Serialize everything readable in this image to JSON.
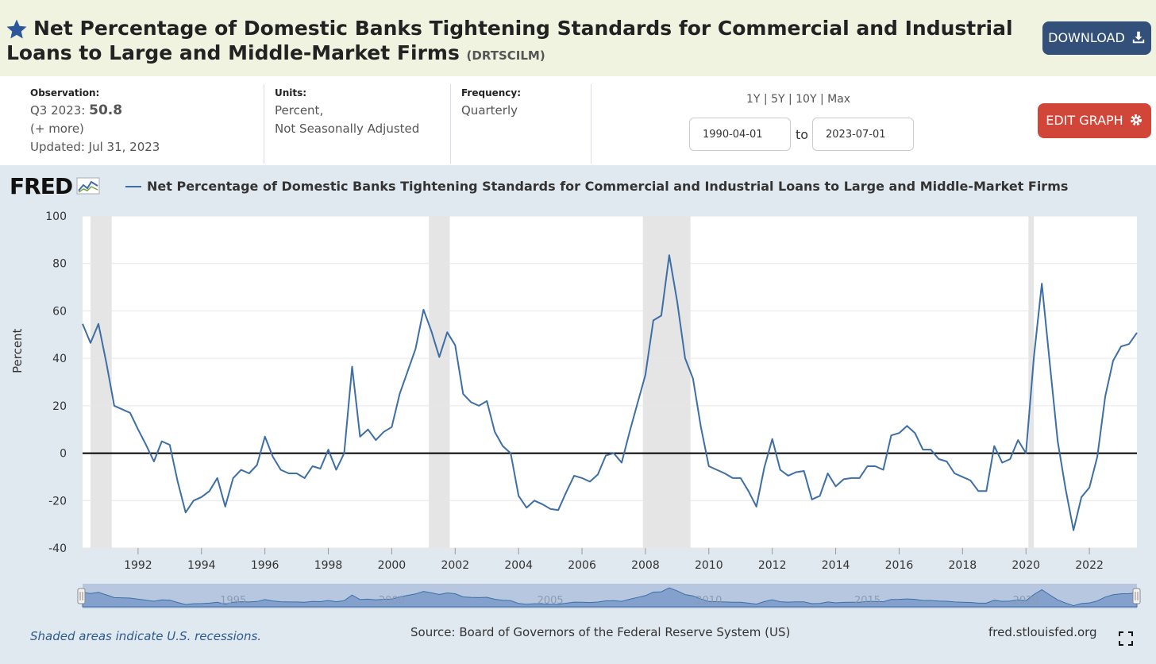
{
  "header": {
    "title": "Net Percentage of Domestic Banks Tightening Standards for Commercial and Industrial Loans to Large and Middle-Market Firms",
    "series_code": "(DRTSCILM)",
    "download_label": "DOWNLOAD"
  },
  "meta": {
    "observation_label": "Observation:",
    "observation_period": "Q3 2023:",
    "observation_value": "50.8",
    "more_label": "(+ more)",
    "updated": "Updated: Jul 31, 2023",
    "units_label": "Units:",
    "units_line1": "Percent,",
    "units_line2": "Not Seasonally Adjusted",
    "frequency_label": "Frequency:",
    "frequency_value": "Quarterly",
    "range_options": "1Y | 5Y | 10Y | Max",
    "start_date": "1990-04-01",
    "to_label": "to",
    "end_date": "2023-07-01",
    "edit_label": "EDIT GRAPH"
  },
  "logo_text": "FRED",
  "footer": {
    "recession_note": "Shaded areas indicate U.S. recessions.",
    "source": "Source: Board of Governors of the Federal Reserve System (US)",
    "site": "fred.stlouisfed.org"
  },
  "colors": {
    "series": "#3d6ea5",
    "download_button": "#32507a",
    "edit_button": "#d2463a",
    "header_bg": "#f1f3e1",
    "recession_shade": "#e5e5e5"
  },
  "chart_data": {
    "type": "line",
    "title": "",
    "xlabel": "",
    "ylabel": "Percent",
    "ylim": [
      -40,
      100
    ],
    "xlim": [
      1990.25,
      2023.5
    ],
    "yticks": [
      -40,
      -20,
      0,
      20,
      40,
      60,
      80,
      100
    ],
    "xticks": [
      1992,
      1994,
      1996,
      1998,
      2000,
      2002,
      2004,
      2006,
      2008,
      2010,
      2012,
      2014,
      2016,
      2018,
      2020,
      2022
    ],
    "navigator_labels": [
      "1995",
      "2000",
      "2005",
      "2010",
      "2015",
      "2020"
    ],
    "grid": true,
    "recessions": [
      [
        1990.5,
        1991.17
      ],
      [
        2001.17,
        2001.83
      ],
      [
        2007.92,
        2009.42
      ],
      [
        2020.08,
        2020.25
      ]
    ],
    "series": [
      {
        "name": "Net Percentage of Domestic Banks Tightening Standards for Commercial and Industrial Loans to Large and Middle-Market Firms",
        "x": [
          1990.25,
          1990.5,
          1990.75,
          1991.0,
          1991.25,
          1991.75,
          1992.0,
          1992.25,
          1992.5,
          1992.75,
          1993.0,
          1993.25,
          1993.5,
          1993.75,
          1994.0,
          1994.25,
          1994.5,
          1994.75,
          1995.0,
          1995.25,
          1995.5,
          1995.75,
          1996.0,
          1996.25,
          1996.5,
          1996.75,
          1997.0,
          1997.25,
          1997.5,
          1997.75,
          1998.0,
          1998.25,
          1998.5,
          1998.75,
          1999.0,
          1999.25,
          1999.5,
          1999.75,
          2000.0,
          2000.25,
          2000.5,
          2000.75,
          2001.0,
          2001.25,
          2001.5,
          2001.75,
          2002.0,
          2002.25,
          2002.5,
          2002.75,
          2003.0,
          2003.25,
          2003.5,
          2003.75,
          2004.0,
          2004.25,
          2004.5,
          2004.75,
          2005.0,
          2005.25,
          2005.5,
          2005.75,
          2006.0,
          2006.25,
          2006.5,
          2006.75,
          2007.0,
          2007.25,
          2007.5,
          2007.75,
          2008.0,
          2008.25,
          2008.5,
          2008.75,
          2009.0,
          2009.25,
          2009.5,
          2009.75,
          2010.0,
          2010.25,
          2010.5,
          2010.75,
          2011.0,
          2011.25,
          2011.5,
          2011.75,
          2012.0,
          2012.25,
          2012.5,
          2012.75,
          2013.0,
          2013.25,
          2013.5,
          2013.75,
          2014.0,
          2014.25,
          2014.5,
          2014.75,
          2015.0,
          2015.25,
          2015.5,
          2015.75,
          2016.0,
          2016.25,
          2016.5,
          2016.75,
          2017.0,
          2017.25,
          2017.5,
          2017.75,
          2018.0,
          2018.25,
          2018.5,
          2018.75,
          2019.0,
          2019.25,
          2019.5,
          2019.75,
          2020.0,
          2020.25,
          2020.5,
          2020.75,
          2021.0,
          2021.25,
          2021.5,
          2021.75,
          2022.0,
          2022.25,
          2022.5,
          2022.75,
          2023.0,
          2023.25,
          2023.5
        ],
        "values": [
          54.5,
          46.5,
          54.5,
          38,
          20,
          17,
          10,
          3.5,
          -3.5,
          5,
          3.5,
          -12,
          -25,
          -20,
          -18.5,
          -16,
          -10.5,
          -22.5,
          -10.5,
          -7,
          -8.5,
          -5,
          7,
          -1.5,
          -7,
          -8.5,
          -8.5,
          -10.5,
          -5.5,
          -6.5,
          1.5,
          -7,
          0,
          36.5,
          7,
          10,
          5.5,
          9,
          11,
          25,
          34.5,
          44,
          60.5,
          51.5,
          40.5,
          51,
          45.5,
          25,
          21.5,
          20,
          22,
          9,
          3,
          0,
          -18,
          -23,
          -20,
          -21.5,
          -23.5,
          -24,
          -16.5,
          -9.5,
          -10.5,
          -12,
          -9,
          -1,
          0,
          -4,
          9,
          21,
          33,
          56,
          58,
          83.5,
          64,
          40,
          31.5,
          11,
          -5.5,
          -7,
          -8.5,
          -10.5,
          -10.5,
          -16,
          -22.5,
          -6,
          6,
          -7,
          -9.5,
          -8,
          -7.5,
          -19.5,
          -18,
          -8.5,
          -14,
          -11,
          -10.5,
          -10.5,
          -5.5,
          -5.5,
          -7,
          7.5,
          8.5,
          11.5,
          8.5,
          1.5,
          1.5,
          -2.5,
          -3.5,
          -8.5,
          -10,
          -11.5,
          -16,
          -16,
          3,
          -4,
          -2.5,
          5.5,
          0,
          40.5,
          71.5,
          38,
          5,
          -15,
          -32.5,
          -18.5,
          -14.5,
          -1.5,
          24,
          39,
          45,
          46,
          50.8
        ]
      }
    ]
  }
}
